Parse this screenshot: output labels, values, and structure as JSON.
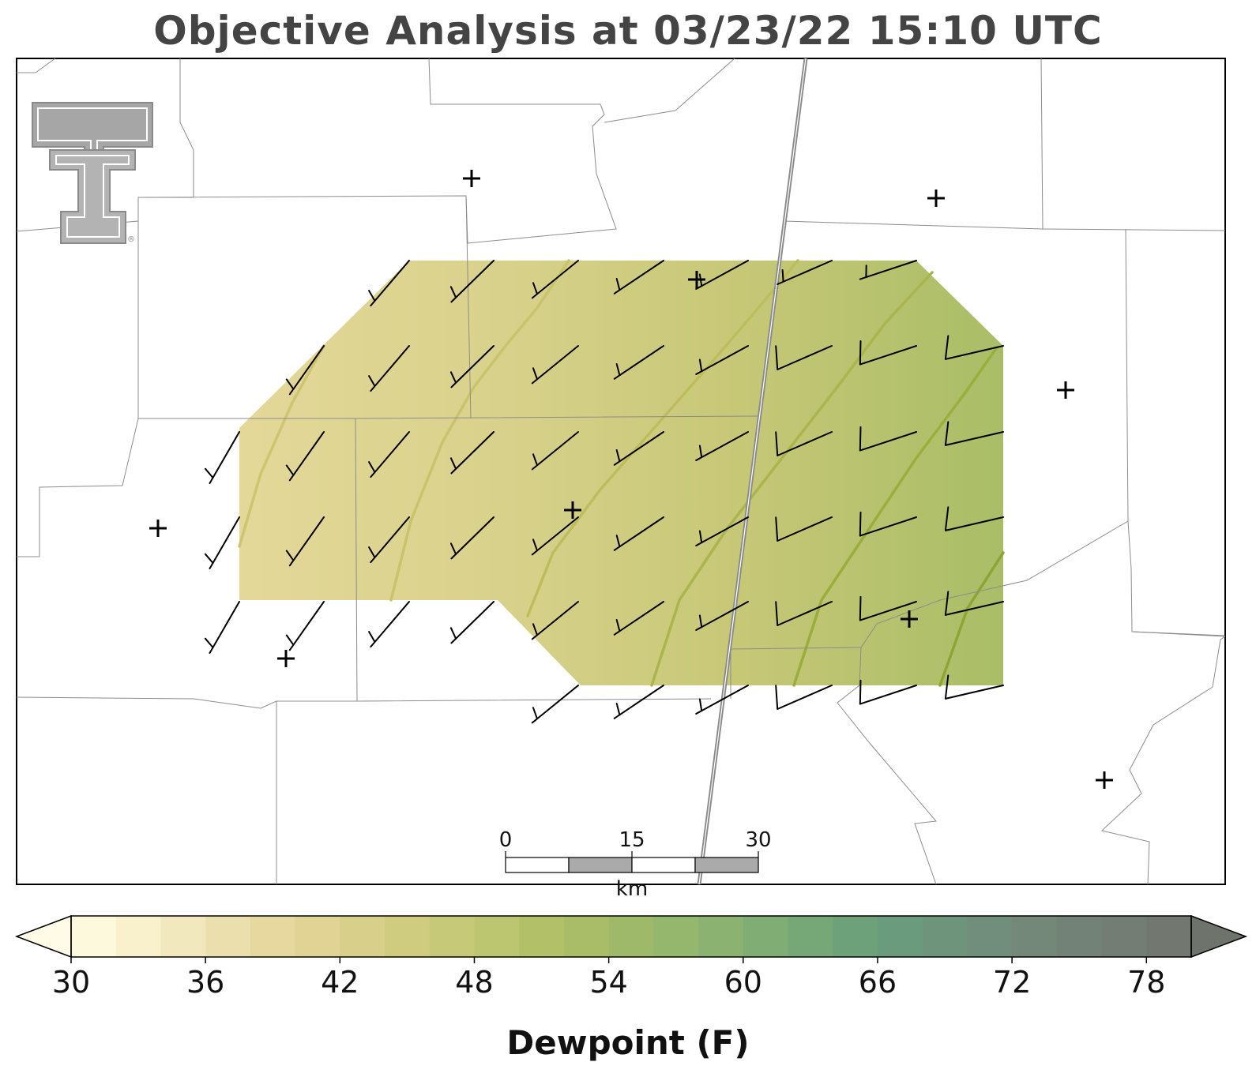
{
  "title": "Objective Analysis at 03/23/22 15:10 UTC",
  "colorbar": {
    "label": "Dewpoint (F)",
    "ticks": [
      "30",
      "36",
      "42",
      "48",
      "54",
      "60",
      "66",
      "72",
      "78"
    ],
    "min": 30,
    "max": 80,
    "step": 2,
    "colors": [
      "#fdf9dc",
      "#f8f1cc",
      "#f1e8bd",
      "#ebe0ad",
      "#e6d89f",
      "#e0d394",
      "#d8cf8a",
      "#cfcc80",
      "#c6c977",
      "#bcc56f",
      "#b2c168",
      "#a9bd68",
      "#9fb96a",
      "#95b66d",
      "#8bb271",
      "#80ad74",
      "#76a877",
      "#6ca17a",
      "#6b9b7d",
      "#6e947c",
      "#718d7b",
      "#738879",
      "#738276",
      "#737d73",
      "#727870"
    ],
    "under_color": "#fffbe6",
    "over_color": "#6e746b"
  },
  "scale_bar": {
    "labels": [
      "0",
      "15",
      "30"
    ],
    "unit": "km"
  },
  "logo": {
    "name": "double-t-logo",
    "mark": "®"
  },
  "chart_data": {
    "type": "heatmap",
    "variable": "Dewpoint (F)",
    "field_gradient": {
      "west_value": 41,
      "east_value": 52,
      "direction": "increasing west to east"
    },
    "stations": 9,
    "wind_barbs": "southwesterly to west-southwesterly, 5-10 kt"
  }
}
